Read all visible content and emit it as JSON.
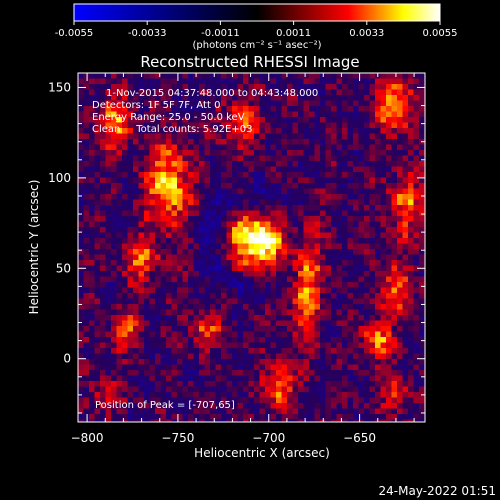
{
  "chart_data": {
    "type": "heatmap",
    "title": "Reconstructed RHESSI Image",
    "xlabel": "Heliocentric X (arcsec)",
    "ylabel": "Heliocentric Y (arcsec)",
    "xlim": [
      -805,
      -614
    ],
    "ylim": [
      -35,
      158
    ],
    "x_ticks": [
      -800,
      -750,
      -700,
      -650
    ],
    "y_ticks": [
      0,
      50,
      100,
      150
    ],
    "colorbar": {
      "label": "(photons cm⁻² s⁻¹ asec⁻²)",
      "min": -0.0055,
      "max": 0.0055,
      "ticks": [
        "-0.0055",
        "-0.0033",
        "-0.0011",
        "0.0011",
        "0.0033",
        "0.0055"
      ],
      "colormap": [
        "#0000ff",
        "#000000",
        "#ff0000",
        "#ffff00",
        "#ffffff"
      ]
    },
    "annotations": [
      "1-Nov-2015 04:37:48.000 to 04:43:48.000",
      "Detectors: 1F 5F 7F, Att 0",
      "Energy Range: 25.0 - 50.0 keV",
      "Clean     Total counts: 5.92E+03"
    ],
    "peak_label": "Position of Peak = [-707,65]",
    "peak": {
      "x": -707,
      "y": 65
    },
    "sources": [
      {
        "x": -707,
        "y": 65,
        "value": 0.0055,
        "sx": 11,
        "sy": 13
      },
      {
        "x": -680,
        "y": 45,
        "value": 0.0035,
        "sx": 7,
        "sy": 24
      },
      {
        "x": -755,
        "y": 95,
        "value": 0.0045,
        "sx": 8,
        "sy": 16
      },
      {
        "x": -770,
        "y": 55,
        "value": 0.003,
        "sx": 7,
        "sy": 9
      },
      {
        "x": -785,
        "y": 130,
        "value": 0.003,
        "sx": 8,
        "sy": 12
      },
      {
        "x": -630,
        "y": 140,
        "value": 0.0035,
        "sx": 8,
        "sy": 12
      },
      {
        "x": -625,
        "y": 85,
        "value": 0.0028,
        "sx": 7,
        "sy": 14
      },
      {
        "x": -630,
        "y": 38,
        "value": 0.003,
        "sx": 7,
        "sy": 9
      },
      {
        "x": -780,
        "y": 15,
        "value": 0.003,
        "sx": 6,
        "sy": 7
      },
      {
        "x": -735,
        "y": 15,
        "value": 0.0028,
        "sx": 6,
        "sy": 7
      },
      {
        "x": -640,
        "y": 10,
        "value": 0.0032,
        "sx": 6,
        "sy": 8
      },
      {
        "x": -695,
        "y": -15,
        "value": 0.0035,
        "sx": 6,
        "sy": 9
      },
      {
        "x": -630,
        "y": -20,
        "value": 0.0025,
        "sx": 6,
        "sy": 7
      },
      {
        "x": -790,
        "y": -20,
        "value": 0.0022,
        "sx": 6,
        "sy": 6
      },
      {
        "x": -715,
        "y": 130,
        "value": 0.0025,
        "sx": 9,
        "sy": 9
      }
    ]
  },
  "footer": {
    "timestamp": "24-May-2022 01:51"
  }
}
